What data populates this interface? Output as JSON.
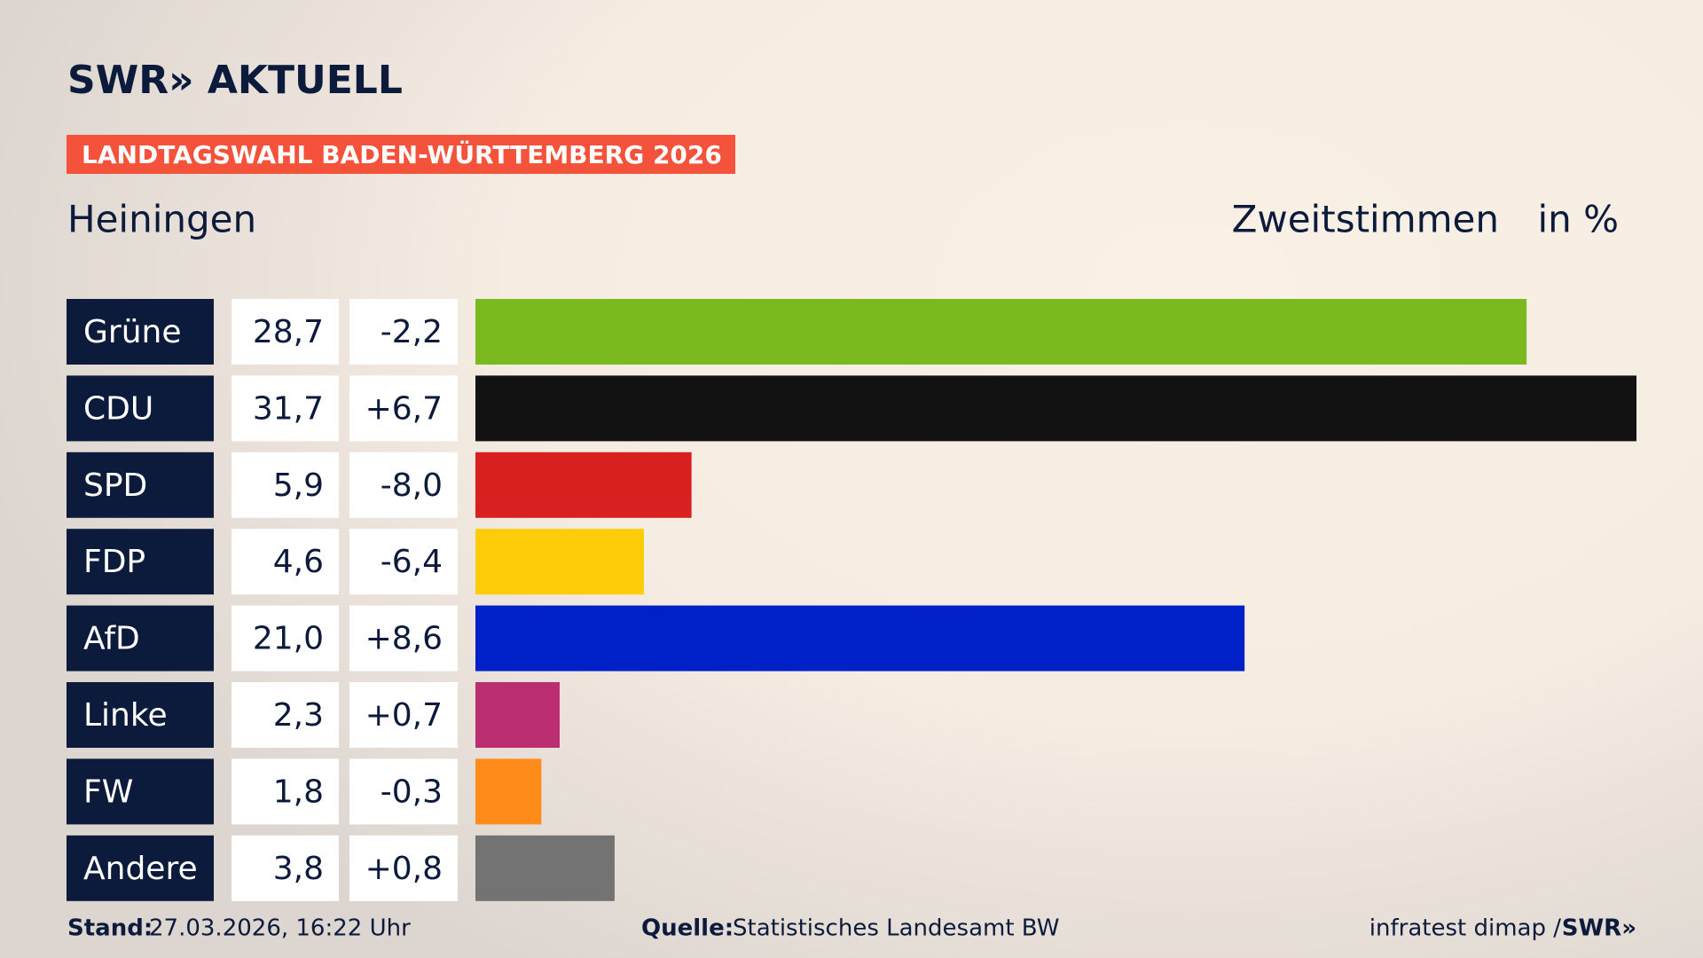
{
  "chart_data": {
    "type": "bar",
    "logo": "SWR» AKTUELL",
    "banner": "LANDTAGSWAHL BADEN-WÜRTTEMBERG 2026",
    "title": "Heiningen",
    "subtitle": "Zweitstimmen",
    "unit": "in %",
    "categories": [
      "Grüne",
      "CDU",
      "SPD",
      "FDP",
      "AfD",
      "Linke",
      "FW",
      "Andere"
    ],
    "values": [
      28.7,
      31.7,
      5.9,
      4.6,
      21.0,
      2.3,
      1.8,
      3.8
    ],
    "value_labels": [
      "28,7",
      "31,7",
      "5,9",
      "4,6",
      "21,0",
      "2,3",
      "1,8",
      "3,8"
    ],
    "changes": [
      -2.2,
      6.7,
      -8.0,
      -6.4,
      8.6,
      0.7,
      -0.3,
      0.8
    ],
    "change_labels": [
      "-2,2",
      "+6,7",
      "-8,0",
      "-6,4",
      "+8,6",
      "+0,7",
      "-0,3",
      "+0,8"
    ],
    "colors": [
      "#7aba1e",
      "#121212",
      "#d7201f",
      "#ffcc0a",
      "#0020c8",
      "#bc2e72",
      "#ff8c1a",
      "#737373"
    ],
    "stand_label": "Stand:",
    "stand": "27.03.2026, 16:22 Uhr",
    "source_label": "Quelle:",
    "source": "Statistisches Landesamt BW",
    "credit": "infratest dimap /",
    "credit_logo": "SWR»"
  }
}
